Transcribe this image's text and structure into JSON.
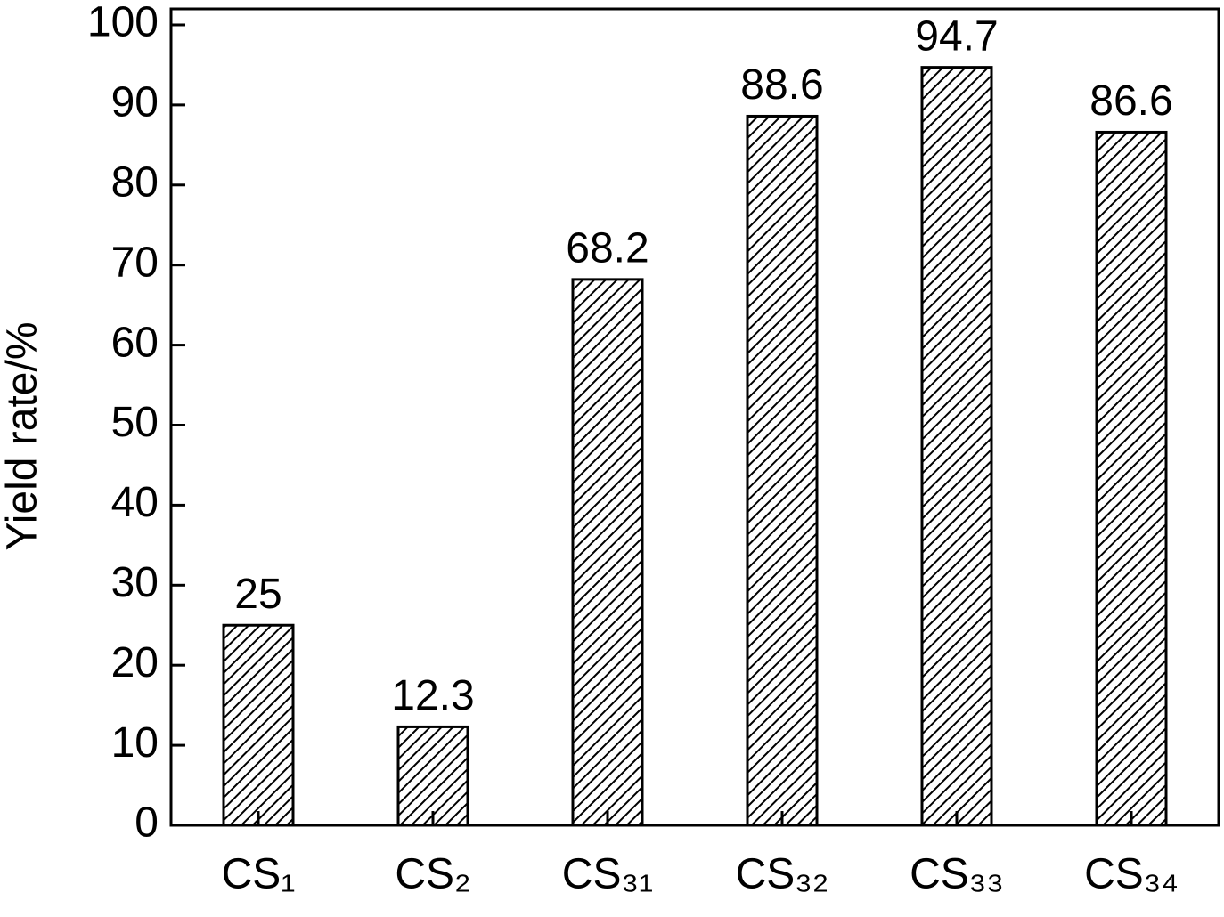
{
  "chart_data": {
    "type": "bar",
    "y_label": "Yield rate/%",
    "categories": [
      "CS₁",
      "CS₂",
      "CS₃₁",
      "CS₃₂",
      "CS₃₃",
      "CS₃₄"
    ],
    "values": [
      25,
      12.3,
      68.2,
      88.6,
      94.7,
      86.6
    ],
    "color": "#000000",
    "ylim": [
      0,
      102
    ],
    "yticks": [
      0,
      10,
      20,
      30,
      40,
      50,
      60,
      70,
      80,
      90,
      100
    ]
  }
}
